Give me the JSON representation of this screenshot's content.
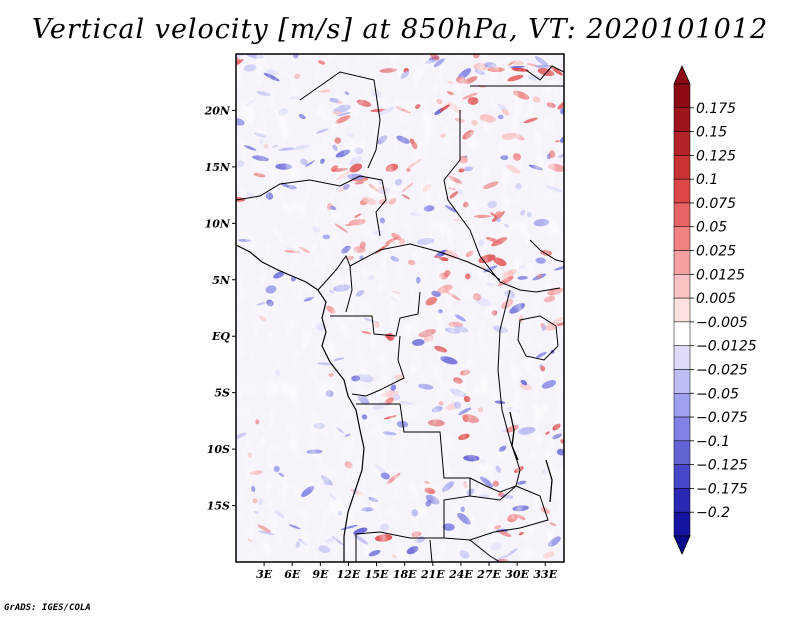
{
  "title": "Vertical velocity [m/s] at 850hPa, VT: 2020101012",
  "credit": "GrADS: IGES/COLA",
  "map": {
    "lon_range": [
      0,
      35
    ],
    "lat_range": [
      -20,
      25
    ],
    "lat_ticks": [
      {
        "value": 20,
        "label": "20N"
      },
      {
        "value": 15,
        "label": "15N"
      },
      {
        "value": 10,
        "label": "10N"
      },
      {
        "value": 5,
        "label": "5N"
      },
      {
        "value": 0,
        "label": "EQ"
      },
      {
        "value": -5,
        "label": "5S"
      },
      {
        "value": -10,
        "label": "10S"
      },
      {
        "value": -15,
        "label": "15S"
      }
    ],
    "lon_ticks": [
      {
        "value": 3,
        "label": "3E"
      },
      {
        "value": 6,
        "label": "6E"
      },
      {
        "value": 9,
        "label": "9E"
      },
      {
        "value": 12,
        "label": "12E"
      },
      {
        "value": 15,
        "label": "15E"
      },
      {
        "value": 18,
        "label": "18E"
      },
      {
        "value": 21,
        "label": "21E"
      },
      {
        "value": 24,
        "label": "24E"
      },
      {
        "value": 27,
        "label": "27E"
      },
      {
        "value": 30,
        "label": "30E"
      },
      {
        "value": 33,
        "label": "33E"
      }
    ]
  },
  "colorbar": {
    "levels": [
      {
        "label": "0.175",
        "color": "#a0141e"
      },
      {
        "label": "0.15",
        "color": "#b42328"
      },
      {
        "label": "0.125",
        "color": "#c83232"
      },
      {
        "label": "0.1",
        "color": "#dc4646"
      },
      {
        "label": "0.075",
        "color": "#e66464"
      },
      {
        "label": "0.05",
        "color": "#f08282"
      },
      {
        "label": "0.025",
        "color": "#f5a0a0"
      },
      {
        "label": "0.0125",
        "color": "#fac3c3"
      },
      {
        "label": "0.005",
        "color": "#fde1e1"
      },
      {
        "label": "-0.005",
        "color": "#ffffff"
      },
      {
        "label": "-0.0125",
        "color": "#dcdcfa"
      },
      {
        "label": "-0.025",
        "color": "#bebef5"
      },
      {
        "label": "-0.05",
        "color": "#a0a0f0"
      },
      {
        "label": "-0.075",
        "color": "#8282e6"
      },
      {
        "label": "-0.1",
        "color": "#6464d7"
      },
      {
        "label": "-0.125",
        "color": "#4646c8"
      },
      {
        "label": "-0.175",
        "color": "#2828b4"
      },
      {
        "label": "-0.2",
        "color": "#1414a0"
      }
    ],
    "top_color": "#8c0a14",
    "bottom_color": "#0a0a8c"
  }
}
